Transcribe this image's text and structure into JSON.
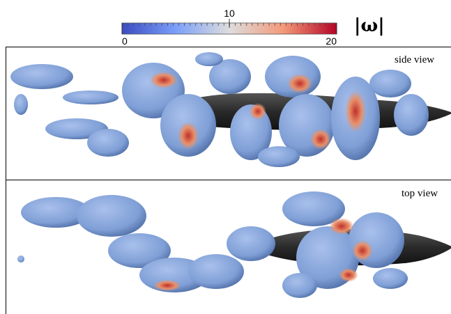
{
  "colorbar": {
    "label": "|ω|",
    "range": [
      0,
      20
    ],
    "ticks": [
      0,
      10,
      20
    ]
  },
  "panels": [
    {
      "label": "side view"
    },
    {
      "label": "top view"
    }
  ]
}
